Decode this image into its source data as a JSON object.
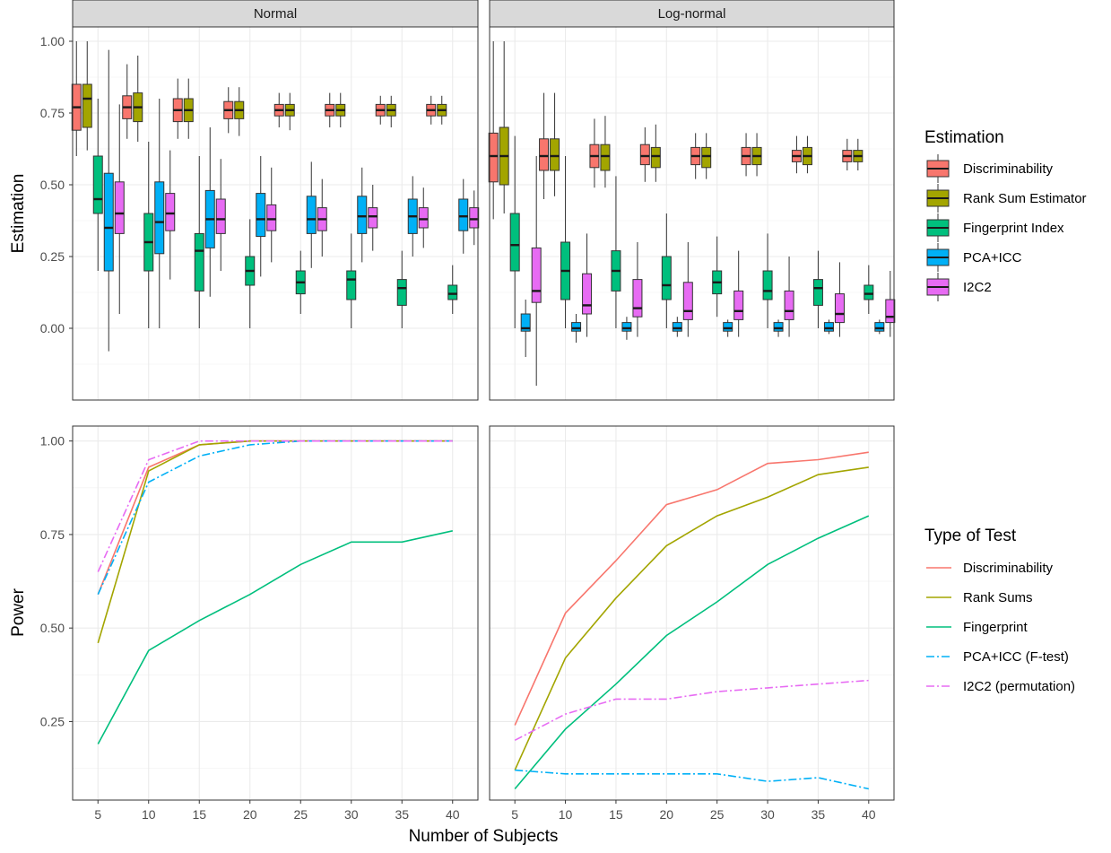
{
  "colors": {
    "Discriminability": "#F8766D",
    "Rank Sum Estimator": "#A3A500",
    "Fingerprint Index": "#00BF7D",
    "PCA+ICC": "#00B0F6",
    "I2C2": "#E76BF3"
  },
  "chart_data": [
    {
      "type": "boxplot",
      "facets": [
        "Normal",
        "Log-normal"
      ],
      "x": [
        5,
        10,
        15,
        20,
        25,
        30,
        35,
        40
      ],
      "ylabel": "Estimation",
      "ylim": [
        -0.25,
        1.05
      ],
      "yticks": [
        0.0,
        0.25,
        0.5,
        0.75,
        1.0
      ],
      "ytick_labels": [
        "0.00",
        "0.25",
        "0.50",
        "0.75",
        "1.00"
      ],
      "grid": true,
      "legend": {
        "title": "Estimation",
        "position": "right",
        "entries": [
          "Discriminability",
          "Rank Sum Estimator",
          "Fingerprint Index",
          "PCA+ICC",
          "I2C2"
        ]
      },
      "series": [
        {
          "name": "Discriminability",
          "Normal": [
            [
              0.69,
              0.77,
              0.85,
              0.6,
              1.0
            ],
            [
              0.73,
              0.77,
              0.81,
              0.66,
              0.92
            ],
            [
              0.72,
              0.76,
              0.8,
              0.66,
              0.87
            ],
            [
              0.73,
              0.76,
              0.79,
              0.68,
              0.84
            ],
            [
              0.74,
              0.76,
              0.78,
              0.7,
              0.82
            ],
            [
              0.74,
              0.76,
              0.78,
              0.7,
              0.82
            ],
            [
              0.74,
              0.76,
              0.78,
              0.71,
              0.81
            ],
            [
              0.74,
              0.76,
              0.78,
              0.71,
              0.81
            ]
          ],
          "Log-normal": [
            [
              0.51,
              0.6,
              0.68,
              0.38,
              1.0
            ],
            [
              0.55,
              0.6,
              0.66,
              0.45,
              0.82
            ],
            [
              0.56,
              0.6,
              0.64,
              0.49,
              0.73
            ],
            [
              0.57,
              0.6,
              0.64,
              0.51,
              0.7
            ],
            [
              0.57,
              0.6,
              0.63,
              0.52,
              0.68
            ],
            [
              0.57,
              0.6,
              0.63,
              0.53,
              0.68
            ],
            [
              0.58,
              0.6,
              0.62,
              0.54,
              0.67
            ],
            [
              0.58,
              0.6,
              0.62,
              0.55,
              0.66
            ]
          ]
        },
        {
          "name": "Rank Sum Estimator",
          "Normal": [
            [
              0.7,
              0.8,
              0.85,
              0.62,
              1.0
            ],
            [
              0.72,
              0.77,
              0.82,
              0.65,
              0.95
            ],
            [
              0.72,
              0.76,
              0.8,
              0.66,
              0.87
            ],
            [
              0.73,
              0.76,
              0.79,
              0.67,
              0.84
            ],
            [
              0.74,
              0.76,
              0.78,
              0.69,
              0.82
            ],
            [
              0.74,
              0.76,
              0.78,
              0.7,
              0.82
            ],
            [
              0.74,
              0.76,
              0.78,
              0.7,
              0.81
            ],
            [
              0.74,
              0.76,
              0.78,
              0.71,
              0.81
            ]
          ],
          "Log-normal": [
            [
              0.5,
              0.6,
              0.7,
              0.4,
              1.0
            ],
            [
              0.55,
              0.6,
              0.66,
              0.46,
              0.82
            ],
            [
              0.55,
              0.6,
              0.64,
              0.49,
              0.74
            ],
            [
              0.56,
              0.6,
              0.63,
              0.51,
              0.71
            ],
            [
              0.56,
              0.6,
              0.63,
              0.52,
              0.68
            ],
            [
              0.57,
              0.6,
              0.63,
              0.53,
              0.68
            ],
            [
              0.57,
              0.6,
              0.63,
              0.54,
              0.67
            ],
            [
              0.58,
              0.6,
              0.62,
              0.55,
              0.66
            ]
          ]
        },
        {
          "name": "Fingerprint Index",
          "Normal": [
            [
              0.4,
              0.45,
              0.6,
              0.2,
              0.8
            ],
            [
              0.2,
              0.3,
              0.4,
              0.0,
              0.65
            ],
            [
              0.13,
              0.27,
              0.33,
              0.0,
              0.6
            ],
            [
              0.15,
              0.2,
              0.25,
              0.0,
              0.38
            ],
            [
              0.12,
              0.16,
              0.2,
              0.05,
              0.27
            ],
            [
              0.1,
              0.17,
              0.2,
              0.0,
              0.33
            ],
            [
              0.08,
              0.14,
              0.17,
              0.0,
              0.27
            ],
            [
              0.1,
              0.12,
              0.15,
              0.05,
              0.22
            ]
          ],
          "Log-normal": [
            [
              0.2,
              0.29,
              0.4,
              0.0,
              0.67
            ],
            [
              0.1,
              0.2,
              0.3,
              0.0,
              0.6
            ],
            [
              0.13,
              0.2,
              0.27,
              0.0,
              0.53
            ],
            [
              0.1,
              0.15,
              0.25,
              0.0,
              0.4
            ],
            [
              0.12,
              0.16,
              0.2,
              0.04,
              0.32
            ],
            [
              0.1,
              0.13,
              0.2,
              0.0,
              0.33
            ],
            [
              0.08,
              0.14,
              0.17,
              0.0,
              0.27
            ],
            [
              0.1,
              0.12,
              0.15,
              0.05,
              0.22
            ]
          ]
        },
        {
          "name": "PCA+ICC",
          "Normal": [
            [
              0.2,
              0.35,
              0.54,
              -0.08,
              0.97
            ],
            [
              0.26,
              0.37,
              0.51,
              0.0,
              0.8
            ],
            [
              0.28,
              0.38,
              0.48,
              0.11,
              0.7
            ],
            [
              0.32,
              0.38,
              0.47,
              0.18,
              0.6
            ],
            [
              0.33,
              0.38,
              0.46,
              0.21,
              0.58
            ],
            [
              0.33,
              0.39,
              0.46,
              0.23,
              0.56
            ],
            [
              0.33,
              0.39,
              0.45,
              0.25,
              0.53
            ],
            [
              0.34,
              0.39,
              0.45,
              0.26,
              0.52
            ]
          ],
          "Log-normal": [
            [
              -0.01,
              0.0,
              0.05,
              -0.1,
              0.1
            ],
            [
              -0.01,
              0.0,
              0.02,
              -0.05,
              0.05
            ],
            [
              -0.01,
              0.0,
              0.02,
              -0.04,
              0.04
            ],
            [
              -0.01,
              0.0,
              0.02,
              -0.03,
              0.04
            ],
            [
              -0.01,
              0.0,
              0.02,
              -0.03,
              0.03
            ],
            [
              -0.01,
              0.0,
              0.02,
              -0.03,
              0.03
            ],
            [
              -0.01,
              0.0,
              0.02,
              -0.02,
              0.03
            ],
            [
              -0.01,
              0.0,
              0.02,
              -0.02,
              0.03
            ]
          ]
        },
        {
          "name": "I2C2",
          "Normal": [
            [
              0.33,
              0.4,
              0.51,
              0.05,
              0.78
            ],
            [
              0.34,
              0.4,
              0.47,
              0.17,
              0.62
            ],
            [
              0.33,
              0.38,
              0.45,
              0.2,
              0.59
            ],
            [
              0.34,
              0.38,
              0.43,
              0.23,
              0.56
            ],
            [
              0.34,
              0.38,
              0.42,
              0.25,
              0.52
            ],
            [
              0.35,
              0.39,
              0.42,
              0.27,
              0.5
            ],
            [
              0.35,
              0.38,
              0.42,
              0.28,
              0.49
            ],
            [
              0.35,
              0.38,
              0.42,
              0.29,
              0.48
            ]
          ],
          "Log-normal": [
            [
              0.09,
              0.13,
              0.28,
              -0.2,
              0.6
            ],
            [
              0.05,
              0.08,
              0.19,
              -0.03,
              0.33
            ],
            [
              0.04,
              0.07,
              0.17,
              -0.03,
              0.3
            ],
            [
              0.03,
              0.06,
              0.16,
              -0.03,
              0.3
            ],
            [
              0.03,
              0.06,
              0.13,
              -0.03,
              0.27
            ],
            [
              0.03,
              0.06,
              0.13,
              -0.03,
              0.25
            ],
            [
              0.02,
              0.05,
              0.12,
              -0.03,
              0.23
            ],
            [
              0.02,
              0.04,
              0.1,
              -0.03,
              0.2
            ]
          ]
        }
      ]
    },
    {
      "type": "line",
      "facets": [
        "Normal",
        "Log-normal"
      ],
      "x": [
        5,
        10,
        15,
        20,
        25,
        30,
        35,
        40
      ],
      "xticks": [
        5,
        10,
        15,
        20,
        25,
        30,
        35,
        40
      ],
      "xlabel": "Number of Subjects",
      "ylabel": "Power",
      "ylim": [
        0.04,
        1.04
      ],
      "yticks": [
        0.25,
        0.5,
        0.75,
        1.0
      ],
      "ytick_labels": [
        "0.25",
        "0.50",
        "0.75",
        "1.00"
      ],
      "grid": true,
      "legend": {
        "title": "Type of Test",
        "position": "right",
        "entries": [
          "Discriminability",
          "Rank Sums",
          "Fingerprint",
          "PCA+ICC (F-test)",
          "I2C2 (permutation)"
        ]
      },
      "series": [
        {
          "name": "Discriminability",
          "color": "#F8766D",
          "dash": "solid",
          "Normal": [
            0.59,
            0.93,
            0.99,
            1.0,
            1.0,
            1.0,
            1.0,
            1.0
          ],
          "Log-normal": [
            0.24,
            0.54,
            0.68,
            0.83,
            0.87,
            0.94,
            0.95,
            0.97
          ]
        },
        {
          "name": "Rank Sums",
          "color": "#A3A500",
          "dash": "solid",
          "Normal": [
            0.46,
            0.92,
            0.99,
            1.0,
            1.0,
            1.0,
            1.0,
            1.0
          ],
          "Log-normal": [
            0.12,
            0.42,
            0.58,
            0.72,
            0.8,
            0.85,
            0.91,
            0.93
          ]
        },
        {
          "name": "Fingerprint",
          "color": "#00BF7D",
          "dash": "solid",
          "Normal": [
            0.19,
            0.44,
            0.52,
            0.59,
            0.67,
            0.73,
            0.73,
            0.76
          ],
          "Log-normal": [
            0.07,
            0.23,
            0.35,
            0.48,
            0.57,
            0.67,
            0.74,
            0.8
          ]
        },
        {
          "name": "PCA+ICC (F-test)",
          "color": "#00B0F6",
          "dash": "dashdot",
          "Normal": [
            0.59,
            0.89,
            0.96,
            0.99,
            1.0,
            1.0,
            1.0,
            1.0
          ],
          "Log-normal": [
            0.12,
            0.11,
            0.11,
            0.11,
            0.11,
            0.09,
            0.1,
            0.07
          ]
        },
        {
          "name": "I2C2 (permutation)",
          "color": "#E76BF3",
          "dash": "dashdot",
          "Normal": [
            0.65,
            0.95,
            1.0,
            1.0,
            1.0,
            1.0,
            1.0,
            1.0
          ],
          "Log-normal": [
            0.2,
            0.27,
            0.31,
            0.31,
            0.33,
            0.34,
            0.35,
            0.36
          ]
        }
      ]
    }
  ]
}
